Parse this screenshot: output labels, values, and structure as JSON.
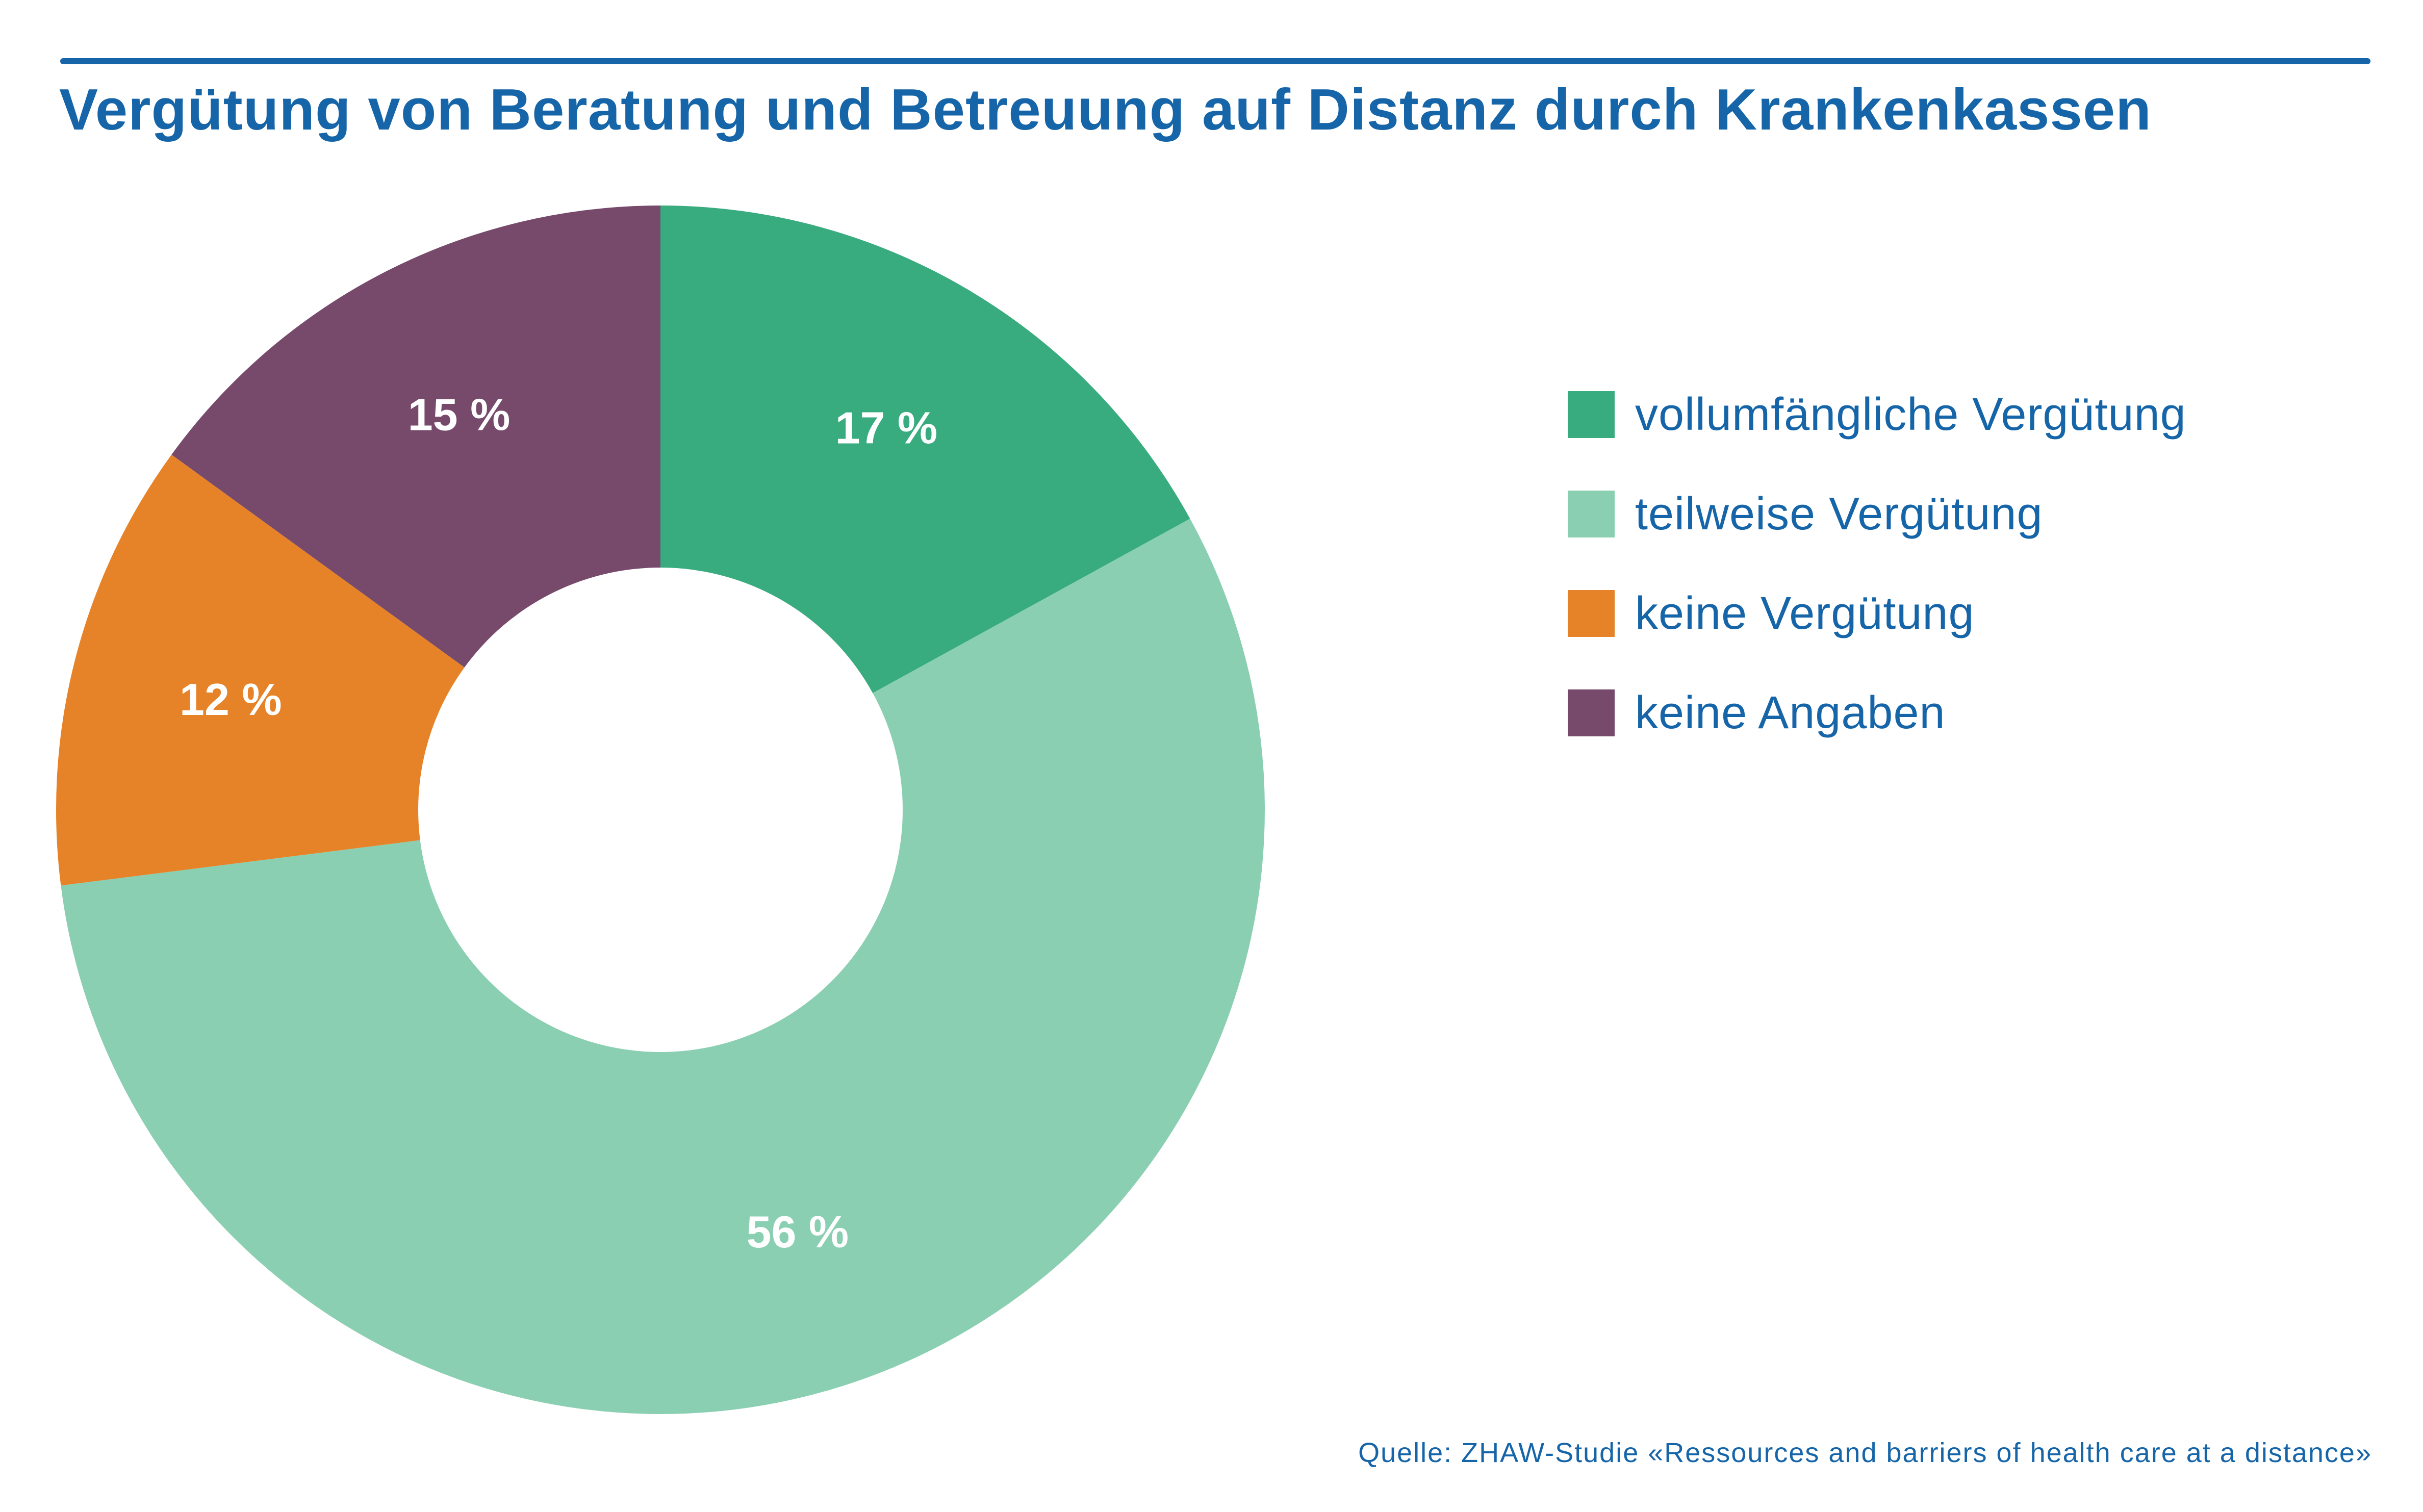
{
  "colors": {
    "title": "#1565a8",
    "rule": "#1565a8",
    "label_text": "#ffffff"
  },
  "chart_data": {
    "type": "pie",
    "variant": "donut",
    "title": "Vergütung von Beratung und Betreuung auf Distanz durch Krankenkassen",
    "slices": [
      {
        "label": "vollumfängliche Vergütung",
        "value": 17,
        "display": "17 %",
        "color": "#38ab7f"
      },
      {
        "label": "teilweise Vergütung",
        "value": 56,
        "display": "56 %",
        "color": "#8bcfb2"
      },
      {
        "label": "keine Vergütung",
        "value": 12,
        "display": "12 %",
        "color": "#e68227"
      },
      {
        "label": "keine Angaben",
        "value": 15,
        "display": "15 %",
        "color": "#774a6c"
      }
    ],
    "start": "12 o'clock",
    "direction": "clockwise",
    "legend_placement": "right",
    "source": "Quelle: ZHAW-Studie «Ressources and barriers of health care at a distance»"
  }
}
